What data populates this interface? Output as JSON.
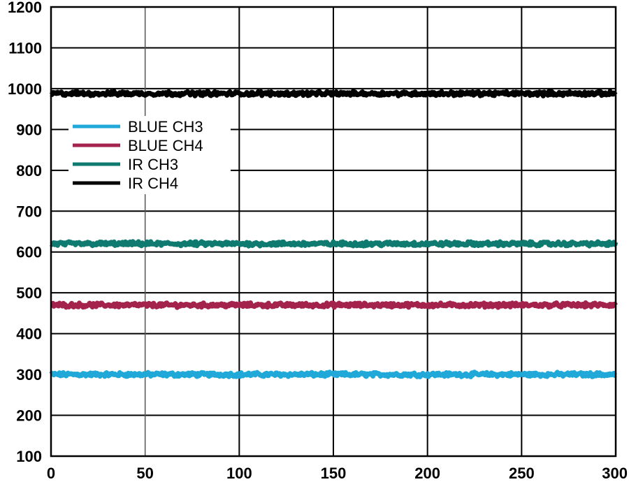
{
  "chart_data": {
    "type": "line",
    "title": "",
    "xlabel": "",
    "ylabel": "",
    "xlim": [
      0,
      300
    ],
    "ylim": [
      100,
      1200
    ],
    "x_ticks": [
      0,
      50,
      100,
      150,
      200,
      250,
      300
    ],
    "y_ticks": [
      100,
      200,
      300,
      400,
      500,
      600,
      700,
      800,
      900,
      1000,
      1100,
      1200
    ],
    "grid": true,
    "legend_position": "upper-left",
    "series": [
      {
        "name": "BLUE CH3",
        "color": "#1fa8d8",
        "level": 300,
        "noise": 4
      },
      {
        "name": "BLUE CH4",
        "color": "#a3234d",
        "level": 470,
        "noise": 4
      },
      {
        "name": "IR CH3",
        "color": "#0f7a6f",
        "level": 620,
        "noise": 4
      },
      {
        "name": "IR CH4",
        "color": "#000000",
        "level": 988,
        "noise": 4
      }
    ]
  }
}
